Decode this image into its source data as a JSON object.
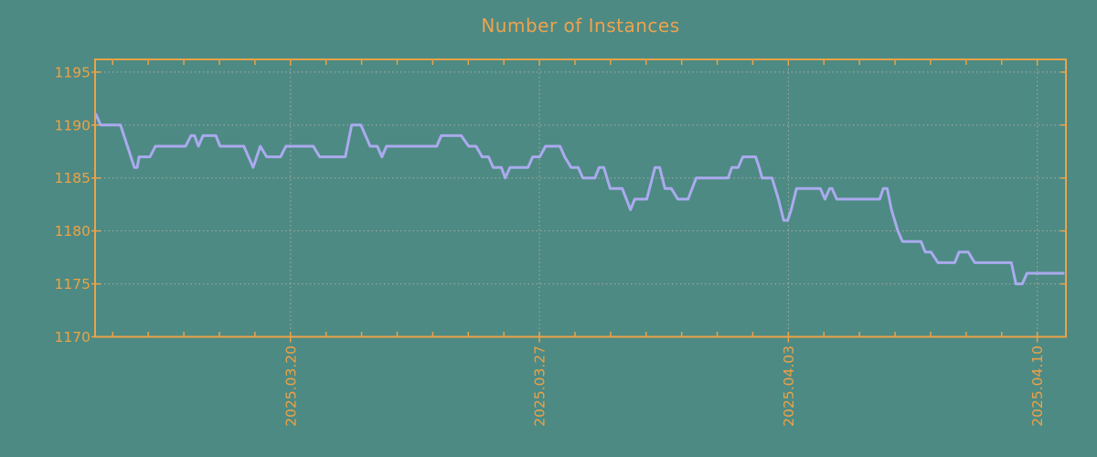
{
  "title": "Number of Instances",
  "colors": {
    "background": "#4d8a83",
    "axis_and_text": "#eda247",
    "title_text": "#f0a24e",
    "line": "#aaaaee",
    "grid": "#a8aba7"
  },
  "chart_data": {
    "type": "line",
    "title": "Number of Instances",
    "xlabel": "",
    "ylabel": "",
    "grid": true,
    "legend": "none",
    "x_axis": {
      "unit": "days since chart start (left edge ≈ 2025-03-14)",
      "t_max": 27.25,
      "minor_tick_start_t": 0.47,
      "minor_tick_interval_days": 1,
      "minor_tick_count": 27,
      "major_ticks": [
        {
          "t": 5.47,
          "label": "2025.03.20"
        },
        {
          "t": 12.47,
          "label": "2025.03.27"
        },
        {
          "t": 19.47,
          "label": "2025.04.03"
        },
        {
          "t": 26.47,
          "label": "2025.04.10"
        }
      ]
    },
    "y_axis": {
      "ticks": [
        1170,
        1175,
        1180,
        1185,
        1190,
        1195
      ],
      "ylim": [
        1170,
        1196.2
      ]
    },
    "series": [
      {
        "name": "instances",
        "color": "#aaaaee",
        "points": [
          [
            0,
            1191
          ],
          [
            0.13,
            1190
          ],
          [
            0.69,
            1190
          ],
          [
            1.08,
            1186
          ],
          [
            1.16,
            1186
          ],
          [
            1.21,
            1187
          ],
          [
            1.52,
            1187
          ],
          [
            1.67,
            1188
          ],
          [
            2.52,
            1188
          ],
          [
            2.67,
            1189
          ],
          [
            2.77,
            1189
          ],
          [
            2.88,
            1188
          ],
          [
            3.01,
            1189
          ],
          [
            3.37,
            1189
          ],
          [
            3.49,
            1188
          ],
          [
            4.16,
            1188
          ],
          [
            4.42,
            1186
          ],
          [
            4.62,
            1188
          ],
          [
            4.8,
            1187
          ],
          [
            5.19,
            1187
          ],
          [
            5.34,
            1188
          ],
          [
            6.11,
            1188
          ],
          [
            6.29,
            1187
          ],
          [
            7.01,
            1187
          ],
          [
            7.19,
            1190
          ],
          [
            7.45,
            1190
          ],
          [
            7.71,
            1188
          ],
          [
            7.91,
            1188
          ],
          [
            8.04,
            1187
          ],
          [
            8.17,
            1188
          ],
          [
            9.58,
            1188
          ],
          [
            9.71,
            1189
          ],
          [
            10.27,
            1189
          ],
          [
            10.48,
            1188
          ],
          [
            10.69,
            1188
          ],
          [
            10.86,
            1187
          ],
          [
            11.04,
            1187
          ],
          [
            11.17,
            1186
          ],
          [
            11.4,
            1186
          ],
          [
            11.51,
            1185
          ],
          [
            11.64,
            1186
          ],
          [
            12.15,
            1186
          ],
          [
            12.28,
            1187
          ],
          [
            12.48,
            1187
          ],
          [
            12.64,
            1188
          ],
          [
            13.05,
            1188
          ],
          [
            13.18,
            1187
          ],
          [
            13.36,
            1186
          ],
          [
            13.56,
            1186
          ],
          [
            13.69,
            1185
          ],
          [
            14.03,
            1185
          ],
          [
            14.15,
            1186
          ],
          [
            14.28,
            1186
          ],
          [
            14.46,
            1184
          ],
          [
            14.8,
            1184
          ],
          [
            15.03,
            1182
          ],
          [
            15.15,
            1183
          ],
          [
            15.49,
            1183
          ],
          [
            15.72,
            1186
          ],
          [
            15.85,
            1186
          ],
          [
            16,
            1184
          ],
          [
            16.18,
            1184
          ],
          [
            16.36,
            1183
          ],
          [
            16.65,
            1183
          ],
          [
            16.88,
            1185
          ],
          [
            17.78,
            1185
          ],
          [
            17.88,
            1186
          ],
          [
            18.06,
            1186
          ],
          [
            18.19,
            1187
          ],
          [
            18.55,
            1187
          ],
          [
            18.65,
            1186
          ],
          [
            18.73,
            1185
          ],
          [
            19.01,
            1185
          ],
          [
            19.19,
            1183
          ],
          [
            19.34,
            1181
          ],
          [
            19.45,
            1181
          ],
          [
            19.55,
            1182
          ],
          [
            19.7,
            1184
          ],
          [
            20.37,
            1184
          ],
          [
            20.5,
            1183
          ],
          [
            20.63,
            1184
          ],
          [
            20.7,
            1184
          ],
          [
            20.83,
            1183
          ],
          [
            22.04,
            1183
          ],
          [
            22.14,
            1184
          ],
          [
            22.25,
            1184
          ],
          [
            22.37,
            1182
          ],
          [
            22.55,
            1180
          ],
          [
            22.68,
            1179
          ],
          [
            23.2,
            1179
          ],
          [
            23.32,
            1178
          ],
          [
            23.48,
            1178
          ],
          [
            23.68,
            1177
          ],
          [
            24.15,
            1177
          ],
          [
            24.27,
            1178
          ],
          [
            24.53,
            1178
          ],
          [
            24.71,
            1177
          ],
          [
            25.74,
            1177
          ],
          [
            25.87,
            1175
          ],
          [
            26.05,
            1175
          ],
          [
            26.18,
            1176
          ],
          [
            27.2,
            1176
          ]
        ]
      }
    ]
  }
}
